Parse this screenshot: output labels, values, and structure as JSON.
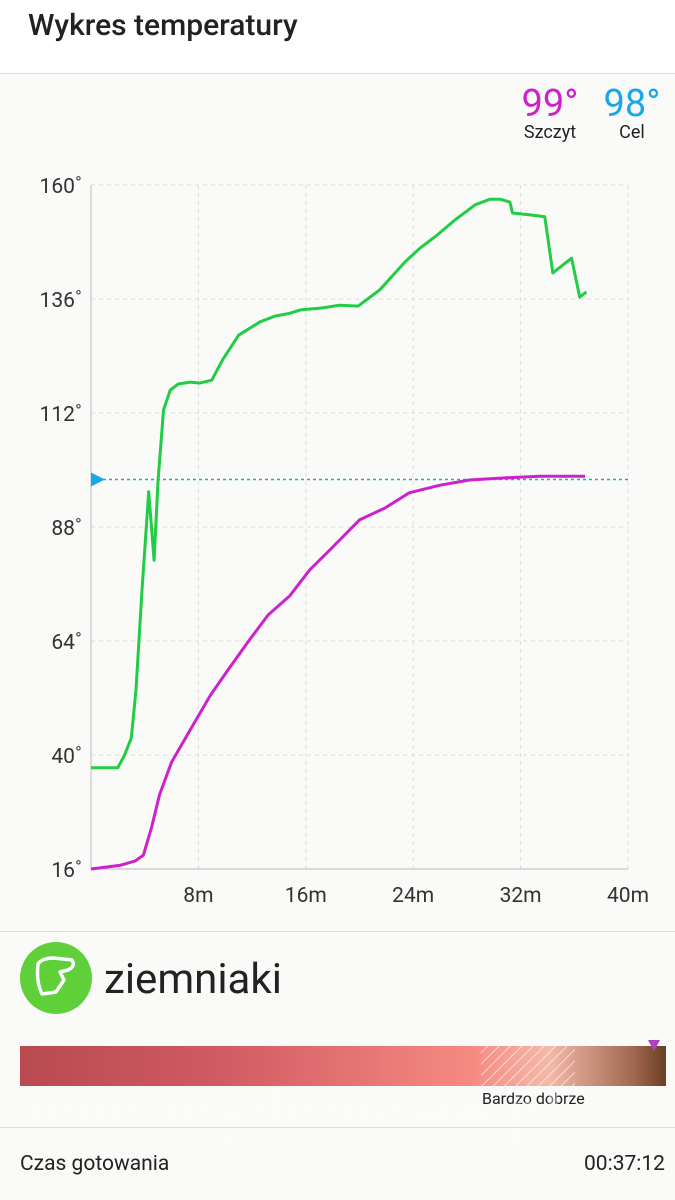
{
  "header": {
    "title": "Wykres temperatury"
  },
  "stats": [
    {
      "value": "99°",
      "label": "Szczyt",
      "color": "#cc22cc"
    },
    {
      "value": "98°",
      "label": "Cel",
      "color": "#1aa7e8"
    }
  ],
  "chart_data": {
    "type": "line",
    "xlim": [
      0,
      40
    ],
    "xticks": [
      {
        "value": 8,
        "label": "8m"
      },
      {
        "value": 16,
        "label": "16m"
      },
      {
        "value": 24,
        "label": "24m"
      },
      {
        "value": 32,
        "label": "32m"
      },
      {
        "value": 40,
        "label": "40m"
      }
    ],
    "ylim": [
      16,
      160
    ],
    "yticks": [
      {
        "value": 16,
        "label": "16˚"
      },
      {
        "value": 40,
        "label": "40˚"
      },
      {
        "value": 64,
        "label": "64˚"
      },
      {
        "value": 88,
        "label": "88˚"
      },
      {
        "value": 112,
        "label": "112˚"
      },
      {
        "value": 136,
        "label": "136˚"
      },
      {
        "value": 160,
        "label": "160˚"
      }
    ],
    "grid": true,
    "target": 98,
    "target_color": "#1aa7e8",
    "series": [
      {
        "color": "#22cc44",
        "x": [
          0,
          1.4,
          2.0,
          2.5,
          3.0,
          3.35,
          3.8,
          4.3,
          4.7,
          5.0,
          5.4,
          5.9,
          6.5,
          7.4,
          8.1,
          9.0,
          9.8,
          11.0,
          11.4,
          12.6,
          13.7,
          14.8,
          15.6,
          17.2,
          18.5,
          19.9,
          21.5,
          23.4,
          24.5,
          25.8,
          27.1,
          28.6,
          29.7,
          30.5,
          31.2,
          31.4,
          32.7,
          33.8,
          34.4,
          35.8,
          36.4,
          36.9
        ],
        "values": [
          37.3,
          37.3,
          37.3,
          40,
          43.6,
          53.7,
          74.7,
          95.4,
          81,
          97.9,
          112.6,
          116.8,
          118.1,
          118.5,
          118.3,
          118.9,
          123.2,
          128.4,
          129.1,
          131.2,
          132.4,
          133,
          133.7,
          134.1,
          134.7,
          134.5,
          137.9,
          143.8,
          146.7,
          149.5,
          152.6,
          155.8,
          157,
          157,
          156.4,
          154.1,
          153.7,
          153.3,
          141.5,
          144.6,
          136.4,
          137.5
        ]
      },
      {
        "color": "#cc22cc",
        "x": [
          0,
          2.2,
          3.3,
          3.9,
          4.5,
          5.1,
          6.0,
          7.4,
          8.9,
          10.3,
          11.8,
          13.2,
          14.8,
          16.3,
          17.8,
          20.0,
          21.9,
          23.7,
          26.0,
          28.2,
          30.5,
          33.4,
          36.8
        ],
        "values": [
          16,
          16.8,
          17.7,
          18.9,
          24.6,
          31.6,
          38.5,
          45.3,
          52.6,
          58.3,
          64.2,
          69.5,
          73.5,
          79,
          83.2,
          89.5,
          92,
          95.2,
          96.8,
          97.9,
          98.3,
          98.7,
          98.7
        ]
      }
    ]
  },
  "food": {
    "name": "ziemniaki"
  },
  "doneness": {
    "label": "Bardzo dobrze"
  },
  "watermark": "wedlinydomowe.pl",
  "footer": {
    "label": "Czas gotowania",
    "value": "00:37:12"
  }
}
